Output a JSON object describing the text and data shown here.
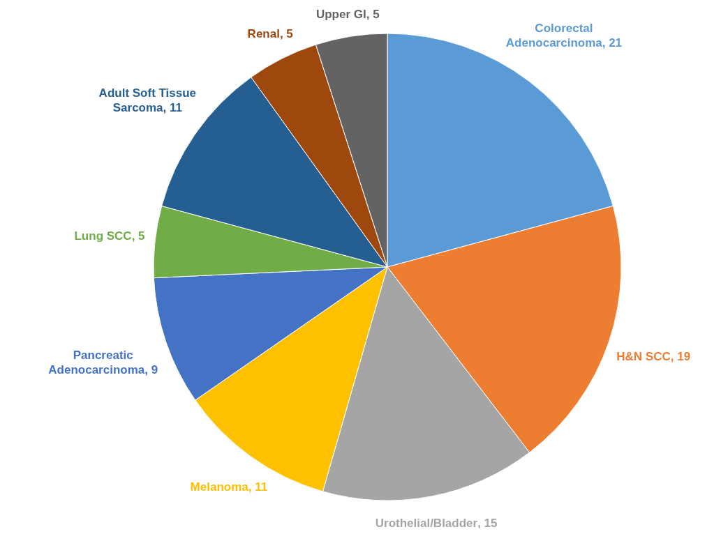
{
  "chart_data": {
    "type": "pie",
    "categories": [
      "Colorectal Adenocarcinoma",
      "H&N SCC",
      "Urothelial/Bladder",
      "Melanoma",
      "Pancreatic Adenocarcinoma",
      "Lung SCC",
      "Adult Soft Tissue Sarcoma",
      "Renal",
      "Upper GI"
    ],
    "values": [
      21,
      19,
      15,
      11,
      9,
      5,
      11,
      5,
      5
    ],
    "value_labels": [
      ", 21",
      ", 19",
      ", 15",
      ", 11",
      ", 9",
      ", 5",
      ", 11",
      ", 5",
      ", 5"
    ],
    "colors": [
      "#5b9bd5",
      "#ed7d31",
      "#a5a5a5",
      "#ffc000",
      "#4472c4",
      "#70ad47",
      "#255e91",
      "#9e480e",
      "#636363"
    ]
  }
}
